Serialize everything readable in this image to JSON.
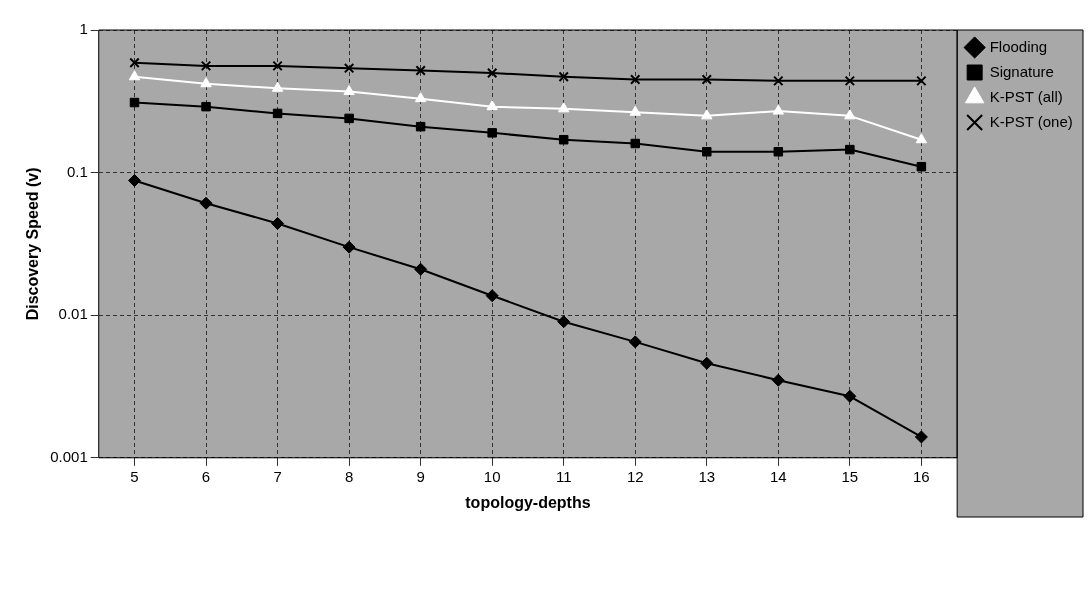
{
  "chart_data": {
    "type": "line",
    "xlabel": "topology-depths",
    "ylabel": "Discovery Speed (v)",
    "categories": [
      "5",
      "6",
      "7",
      "8",
      "9",
      "10",
      "11",
      "12",
      "13",
      "14",
      "15",
      "16"
    ],
    "log": "y",
    "ylim": [
      0.001,
      1
    ],
    "yticks": [
      0.001,
      0.01,
      0.1,
      1
    ],
    "grid": true,
    "legend": "top right",
    "series": [
      {
        "name": "Flooding",
        "color": "#000000",
        "marker": "diamond",
        "values": [
          0.088,
          0.061,
          0.044,
          0.03,
          0.021,
          0.0137,
          0.009,
          0.0065,
          0.0046,
          0.0035,
          0.0027,
          0.0014
        ]
      },
      {
        "name": "Signature",
        "color": "#000000",
        "marker": "square",
        "values": [
          0.31,
          0.29,
          0.26,
          0.24,
          0.21,
          0.19,
          0.17,
          0.16,
          0.14,
          0.14,
          0.145,
          0.11
        ]
      },
      {
        "name": "K-PST (all)",
        "color": "#ffffff",
        "marker": "triangle",
        "values": [
          0.47,
          0.42,
          0.39,
          0.37,
          0.33,
          0.29,
          0.28,
          0.265,
          0.25,
          0.27,
          0.25,
          0.17
        ]
      },
      {
        "name": "K-PST (one)",
        "color": "#000000",
        "marker": "cross",
        "values": [
          0.59,
          0.56,
          0.56,
          0.54,
          0.52,
          0.5,
          0.47,
          0.45,
          0.45,
          0.44,
          0.44,
          0.44
        ]
      }
    ]
  }
}
